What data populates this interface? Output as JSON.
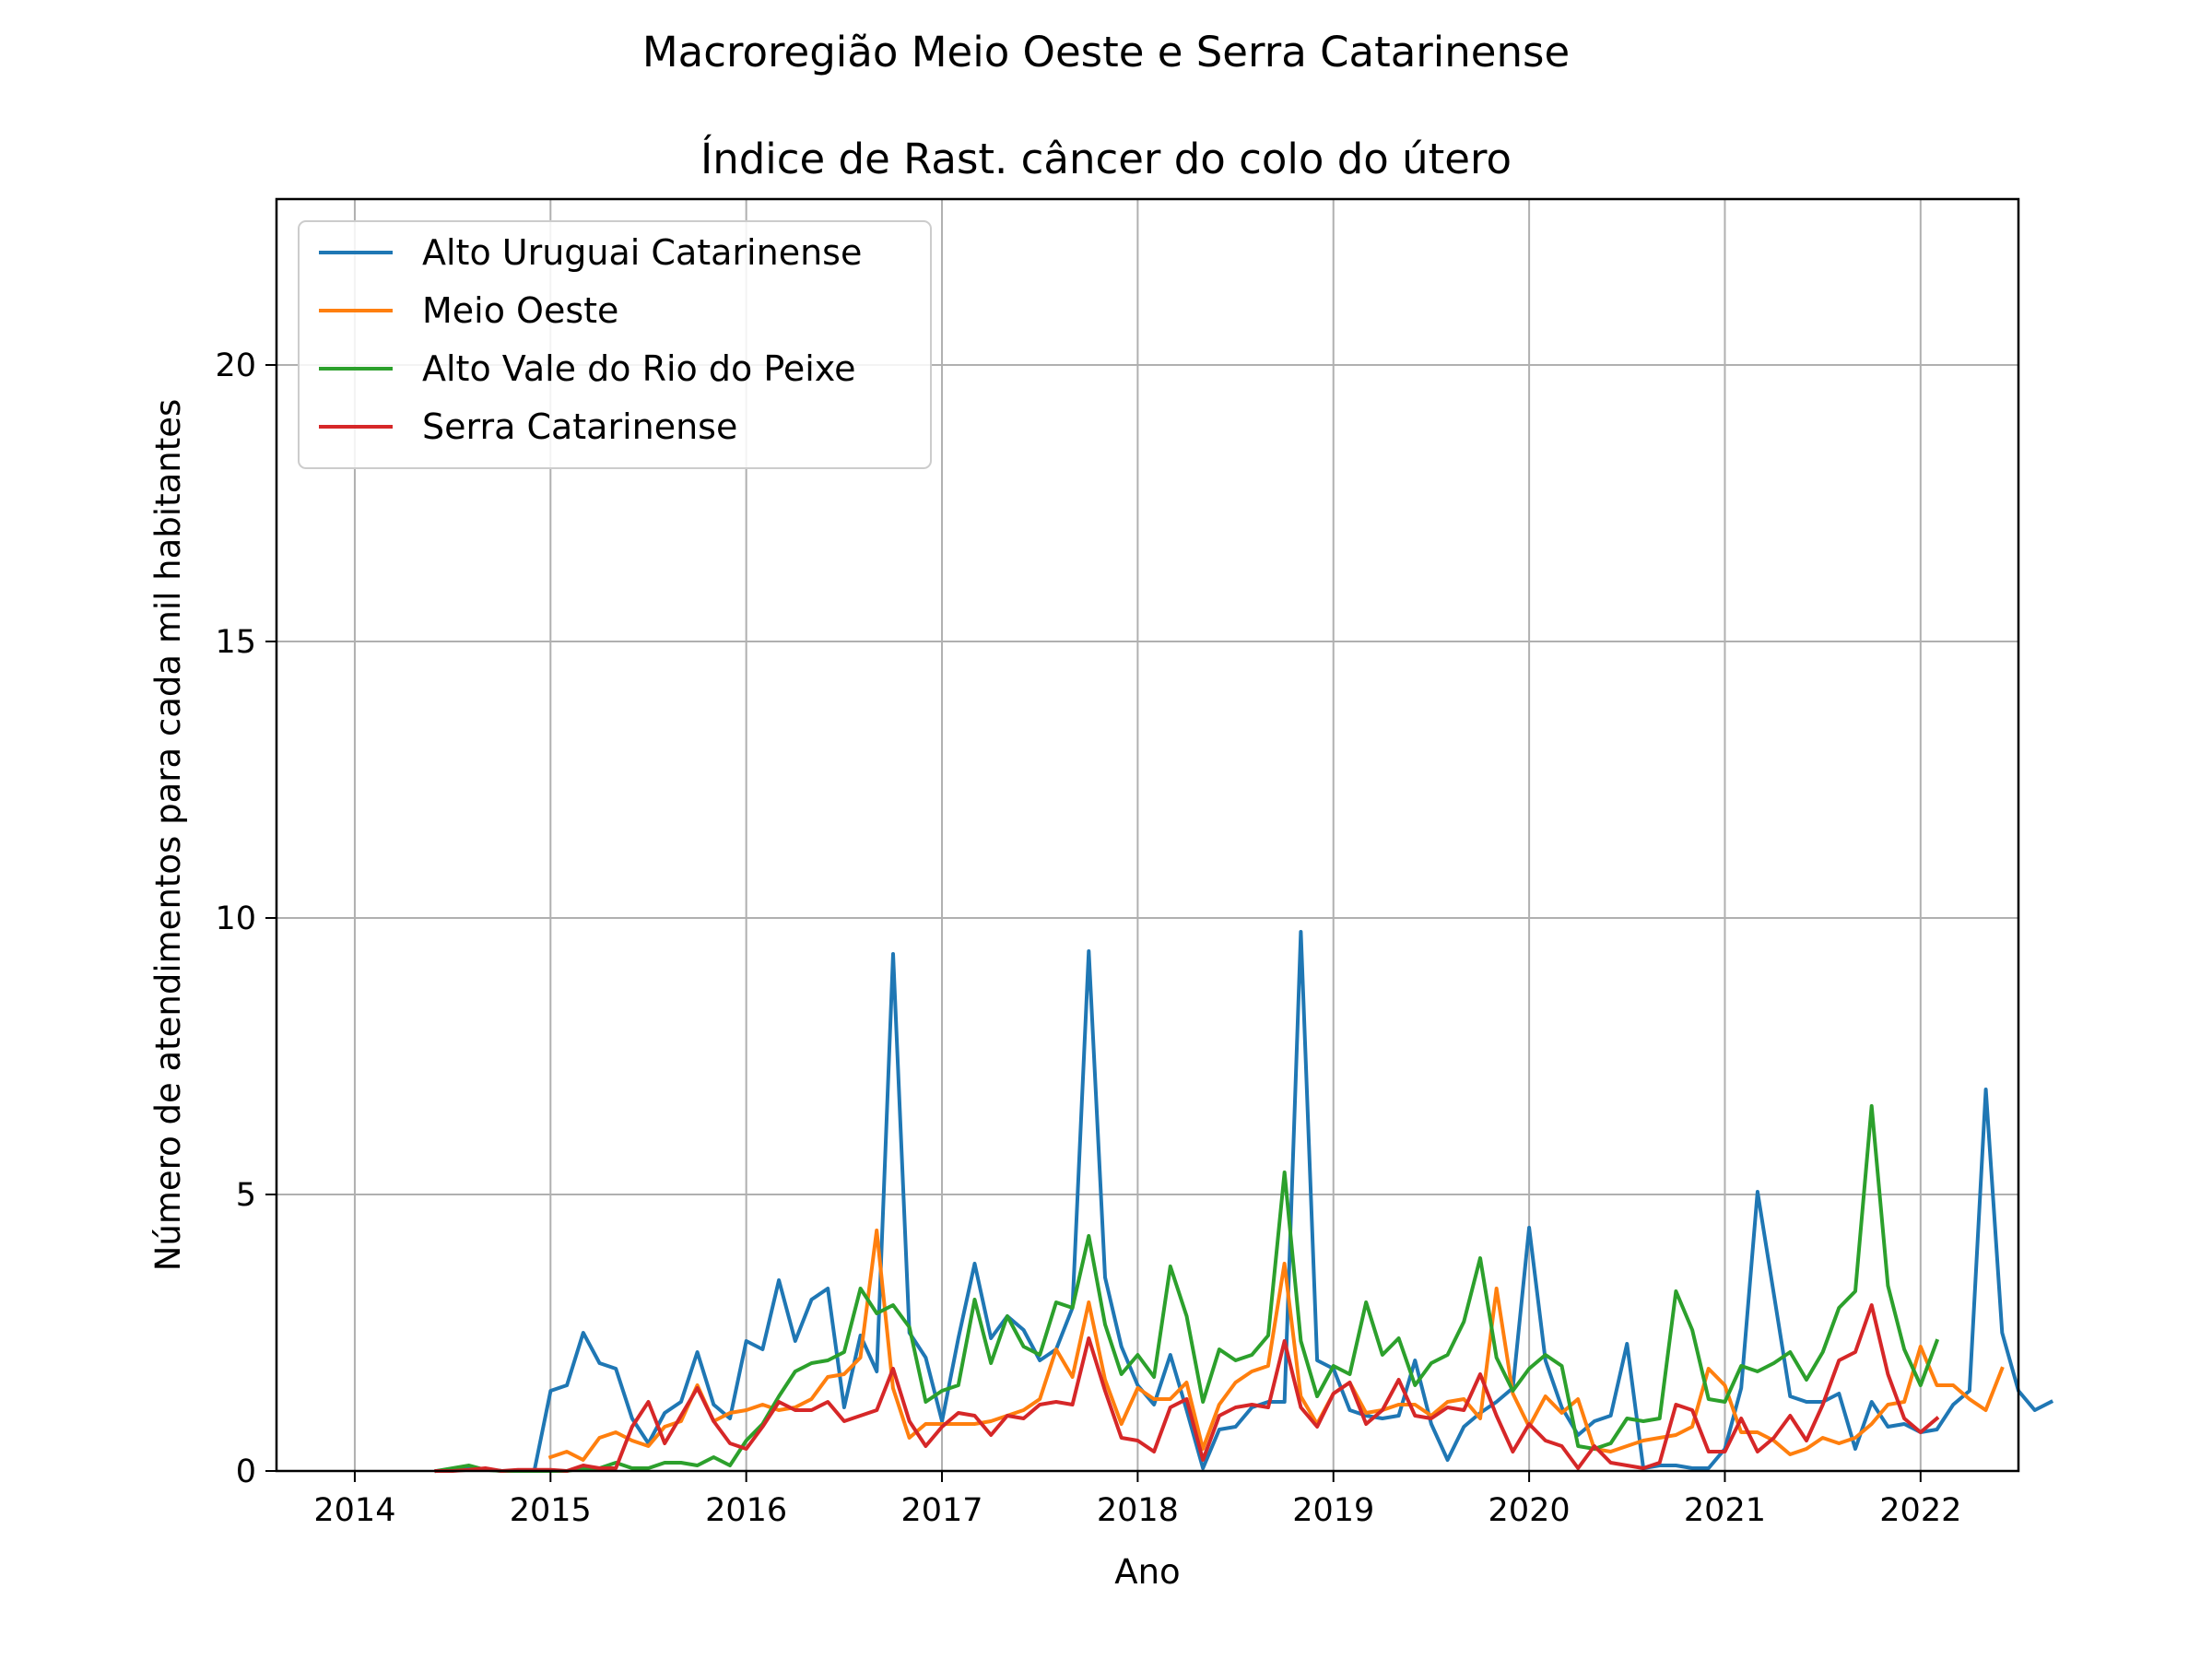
{
  "chart_data": {
    "type": "line",
    "suptitle": "Macroregião Meio Oeste e Serra Catarinense",
    "title": "Índice de Rast. câncer do colo do útero",
    "xlabel": "Ano",
    "ylabel": "Número de atendimentos para cada mil habitantes",
    "xlim": [
      2013.6,
      2022.5
    ],
    "ylim": [
      0,
      23
    ],
    "x_ticks": [
      2014,
      2015,
      2016,
      2017,
      2018,
      2019,
      2020,
      2021,
      2022
    ],
    "x_tick_labels": [
      "2014",
      "2015",
      "2016",
      "2017",
      "2018",
      "2019",
      "2020",
      "2021",
      "2022"
    ],
    "y_ticks": [
      0,
      5,
      10,
      15,
      20
    ],
    "y_tick_labels": [
      "0",
      "5",
      "10",
      "15",
      "20"
    ],
    "grid": true,
    "legend": "top-left",
    "series": [
      {
        "name": "Alto Uruguai Catarinense",
        "color": "#1f77b4",
        "x_start": 2014.417,
        "step": 0.08333,
        "values": [
          0,
          0.02,
          0.05,
          0.03,
          0,
          0,
          0,
          1.45,
          1.55,
          2.5,
          1.95,
          1.85,
          0.95,
          0.5,
          1.05,
          1.25,
          2.15,
          1.2,
          0.95,
          2.35,
          2.2,
          3.45,
          2.35,
          3.1,
          3.3,
          1.15,
          2.45,
          1.8,
          9.35,
          2.5,
          2.05,
          0.9,
          2.4,
          3.75,
          2.4,
          2.8,
          2.55,
          2.0,
          2.2,
          2.95,
          9.4,
          3.5,
          2.25,
          1.55,
          1.2,
          2.1,
          1.1,
          0.05,
          0.75,
          0.8,
          1.15,
          1.25,
          1.25,
          9.75,
          2.0,
          1.85,
          1.1,
          1.0,
          0.95,
          1.0,
          2.0,
          0.85,
          0.2,
          0.8,
          1.05,
          1.25,
          1.5,
          4.4,
          2.0,
          1.15,
          0.65,
          0.9,
          1.0,
          2.3,
          0.05,
          0.1,
          0.1,
          0.05,
          0.05,
          0.4,
          1.5,
          5.05,
          3.2,
          1.35,
          1.25,
          1.25,
          1.4,
          0.4,
          1.25,
          0.8,
          0.85,
          0.7,
          0.75,
          1.2,
          1.45,
          6.9,
          2.5,
          1.45,
          1.1,
          1.25
        ]
      },
      {
        "name": "Meio Oeste",
        "color": "#ff7f0e",
        "x_start": 2015.0,
        "step": 0.08333,
        "values": [
          0.25,
          0.35,
          0.2,
          0.6,
          0.7,
          0.55,
          0.45,
          0.8,
          0.9,
          1.55,
          0.9,
          1.05,
          1.1,
          1.2,
          1.1,
          1.15,
          1.3,
          1.7,
          1.75,
          2.05,
          4.35,
          1.5,
          0.6,
          0.85,
          0.85,
          0.85,
          0.85,
          0.9,
          1.0,
          1.1,
          1.3,
          2.2,
          1.7,
          3.05,
          1.65,
          0.85,
          1.5,
          1.3,
          1.3,
          1.6,
          0.4,
          1.2,
          1.6,
          1.8,
          1.9,
          3.75,
          1.35,
          0.85,
          1.4,
          1.6,
          1.05,
          1.1,
          1.2,
          1.2,
          1.0,
          1.25,
          1.3,
          0.95,
          3.3,
          1.4,
          0.8,
          1.35,
          1.05,
          1.3,
          0.4,
          0.35,
          0.45,
          0.55,
          0.6,
          0.65,
          0.8,
          1.85,
          1.55,
          0.7,
          0.7,
          0.55,
          0.3,
          0.4,
          0.6,
          0.5,
          0.6,
          0.85,
          1.2,
          1.25,
          2.25,
          1.55,
          1.55,
          1.3,
          1.1,
          1.85
        ]
      },
      {
        "name": "Alto Vale do Rio do Peixe",
        "color": "#2ca02c",
        "x_start": 2014.417,
        "step": 0.08333,
        "values": [
          0,
          0.05,
          0.1,
          0.02,
          0,
          0,
          0,
          0,
          0,
          0.05,
          0.05,
          0.15,
          0.05,
          0.05,
          0.15,
          0.15,
          0.1,
          0.25,
          0.1,
          0.55,
          0.85,
          1.35,
          1.8,
          1.95,
          2.0,
          2.15,
          3.3,
          2.85,
          3.0,
          2.6,
          1.25,
          1.45,
          1.55,
          3.1,
          1.95,
          2.8,
          2.25,
          2.1,
          3.05,
          2.95,
          4.25,
          2.65,
          1.75,
          2.1,
          1.7,
          3.7,
          2.8,
          1.25,
          2.2,
          2.0,
          2.1,
          2.45,
          5.4,
          2.35,
          1.35,
          1.9,
          1.75,
          3.05,
          2.1,
          2.4,
          1.55,
          1.95,
          2.1,
          2.7,
          3.85,
          2.05,
          1.45,
          1.85,
          2.1,
          1.9,
          0.45,
          0.4,
          0.5,
          0.95,
          0.9,
          0.95,
          3.25,
          2.55,
          1.3,
          1.25,
          1.9,
          1.8,
          1.95,
          2.15,
          1.65,
          2.15,
          2.95,
          3.25,
          6.6,
          3.35,
          2.2,
          1.55,
          2.35
        ]
      },
      {
        "name": "Serra Catarinense",
        "color": "#d62728",
        "x_start": 2014.417,
        "step": 0.08333,
        "values": [
          0,
          0,
          0.02,
          0.05,
          0,
          0.02,
          0.02,
          0.02,
          0,
          0.1,
          0.05,
          0.05,
          0.8,
          1.25,
          0.5,
          1.0,
          1.5,
          0.9,
          0.5,
          0.4,
          0.8,
          1.25,
          1.1,
          1.1,
          1.25,
          0.9,
          1.0,
          1.1,
          1.85,
          0.9,
          0.45,
          0.8,
          1.05,
          1.0,
          0.65,
          1.0,
          0.95,
          1.2,
          1.25,
          1.2,
          2.4,
          1.45,
          0.6,
          0.55,
          0.35,
          1.15,
          1.3,
          0.2,
          1.0,
          1.15,
          1.2,
          1.15,
          2.35,
          1.15,
          0.8,
          1.4,
          1.6,
          0.85,
          1.1,
          1.65,
          1.0,
          0.95,
          1.15,
          1.1,
          1.75,
          1.0,
          0.35,
          0.85,
          0.55,
          0.45,
          0.05,
          0.45,
          0.15,
          0.1,
          0.05,
          0.15,
          1.2,
          1.1,
          0.35,
          0.35,
          0.95,
          0.35,
          0.6,
          1.0,
          0.55,
          1.2,
          2.0,
          2.15,
          3.0,
          1.75,
          0.95,
          0.7,
          0.95
        ]
      }
    ]
  }
}
